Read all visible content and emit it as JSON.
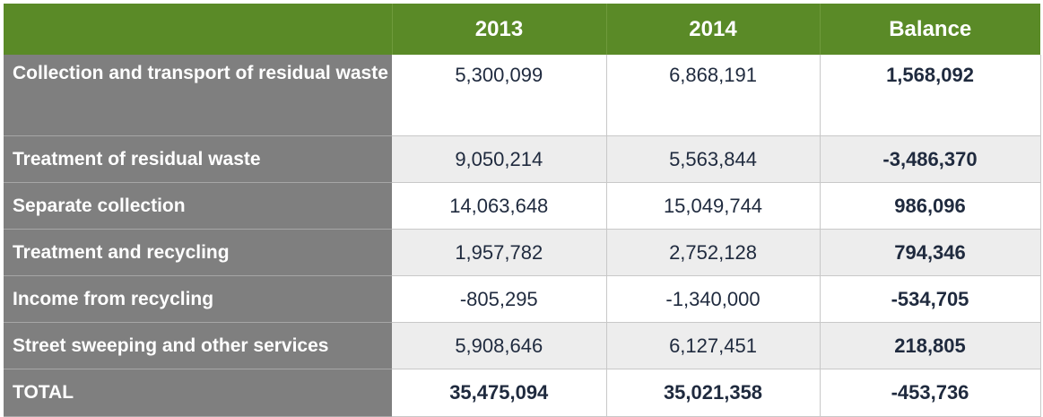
{
  "colors": {
    "header_bg": "#5a8a27",
    "label_bg": "#7f7f7f",
    "negative_balance": "#5a8a27",
    "positive_balance": "#1f2a3e"
  },
  "header": {
    "col0": "",
    "col1": "2013",
    "col2": "2014",
    "col3": "Balance"
  },
  "rows": [
    {
      "label": "Collection and transport of residual waste",
      "y2013": "5,300,099",
      "y2014": "6,868,191",
      "balance": "1,568,092"
    },
    {
      "label": "Treatment of residual waste",
      "y2013": "9,050,214",
      "y2014": "5,563,844",
      "balance": "-3,486,370"
    },
    {
      "label": "Separate collection",
      "y2013": "14,063,648",
      "y2014": "15,049,744",
      "balance": "986,096"
    },
    {
      "label": "Treatment and recycling",
      "y2013": "1,957,782",
      "y2014": "2,752,128",
      "balance": "794,346"
    },
    {
      "label": "Income from recycling",
      "y2013": "-805,295",
      "y2014": "-1,340,000",
      "balance": "-534,705"
    },
    {
      "label": "Street sweeping and other services",
      "y2013": "5,908,646",
      "y2014": "6,127,451",
      "balance": "218,805"
    }
  ],
  "total": {
    "label": "TOTAL",
    "y2013": "35,475,094",
    "y2014": "35,021,358",
    "balance": "-453,736"
  }
}
